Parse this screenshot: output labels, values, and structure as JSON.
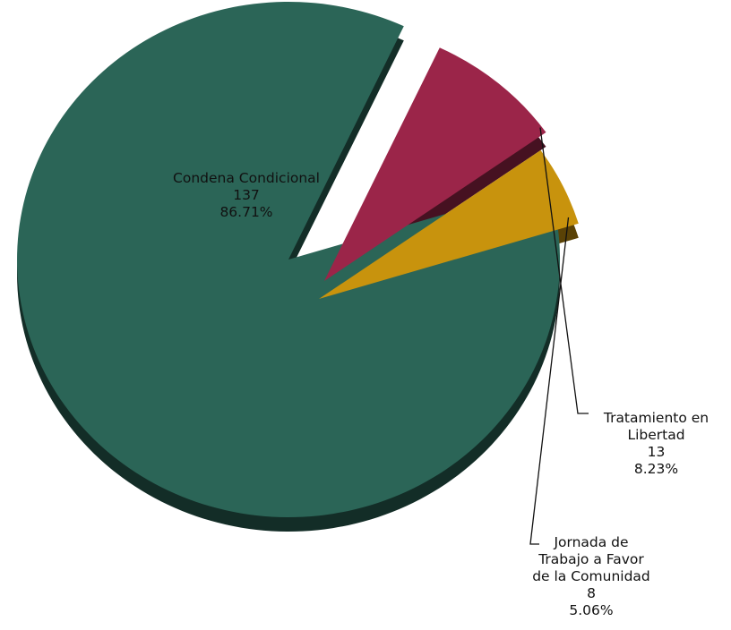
{
  "chart_data": {
    "type": "pie",
    "title": "",
    "categories": [
      "Condena Condicional",
      "Tratamiento en Libertad",
      "Jornada de Trabajo a Favor de la Comunidad"
    ],
    "values": [
      137,
      13,
      8
    ],
    "percentages": [
      "86.71%",
      "8.23%",
      "5.06%"
    ],
    "colors": [
      "#2b6557",
      "#9b2549",
      "#c8930d"
    ],
    "labels": [
      {
        "lines": [
          "Condena Condicional"
        ],
        "value": "137",
        "pct": "86.71%"
      },
      {
        "lines": [
          "Tratamiento en",
          "Libertad"
        ],
        "value": "13",
        "pct": "8.23%"
      },
      {
        "lines": [
          "Jornada de",
          "Trabajo a Favor",
          "de la Comunidad"
        ],
        "value": "8",
        "pct": "5.06%"
      }
    ]
  }
}
